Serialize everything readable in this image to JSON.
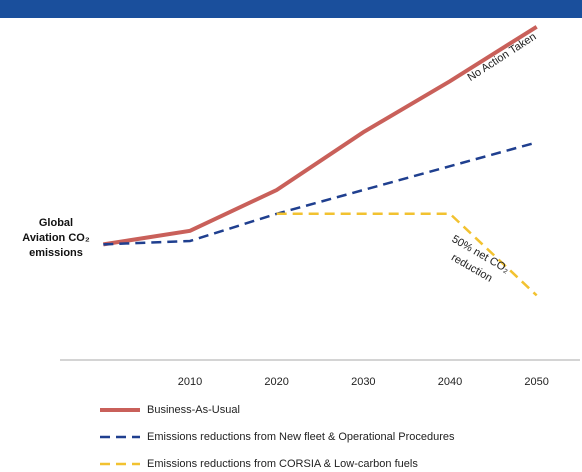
{
  "chart_data": {
    "type": "line",
    "ylabel": "Global Aviation CO₂ emissions",
    "x": [
      2000,
      2010,
      2020,
      2030,
      2040,
      2050
    ],
    "xlim": [
      1995,
      2055
    ],
    "xticks": [
      2010,
      2020,
      2030,
      2040,
      2050
    ],
    "ylim": [
      0,
      100
    ],
    "series": [
      {
        "name": "Business-As-Usual",
        "color": "#c9605a",
        "line_style": "solid",
        "values": [
          34,
          38,
          50,
          67,
          82,
          98
        ]
      },
      {
        "name": "Emissions reductions from New fleet & Operational Procedures",
        "color": "#1f3f8f",
        "line_style": "dashed",
        "values": [
          34,
          35,
          43,
          50,
          57,
          64
        ]
      },
      {
        "name": "Emissions reductions from CORSIA & Low-carbon fuels",
        "color": "#f2c230",
        "line_style": "dashed",
        "values": [
          null,
          null,
          43,
          43,
          43,
          19
        ]
      }
    ],
    "annotations": [
      {
        "text": "No Action Taken",
        "x": 2046,
        "y": 89,
        "rotate": -33
      },
      {
        "text": "50% net CO₂",
        "x": 2043.5,
        "y": 31,
        "rotate": 30
      },
      {
        "text": "reduction",
        "x": 2042.5,
        "y": 27,
        "rotate": 30
      }
    ]
  }
}
